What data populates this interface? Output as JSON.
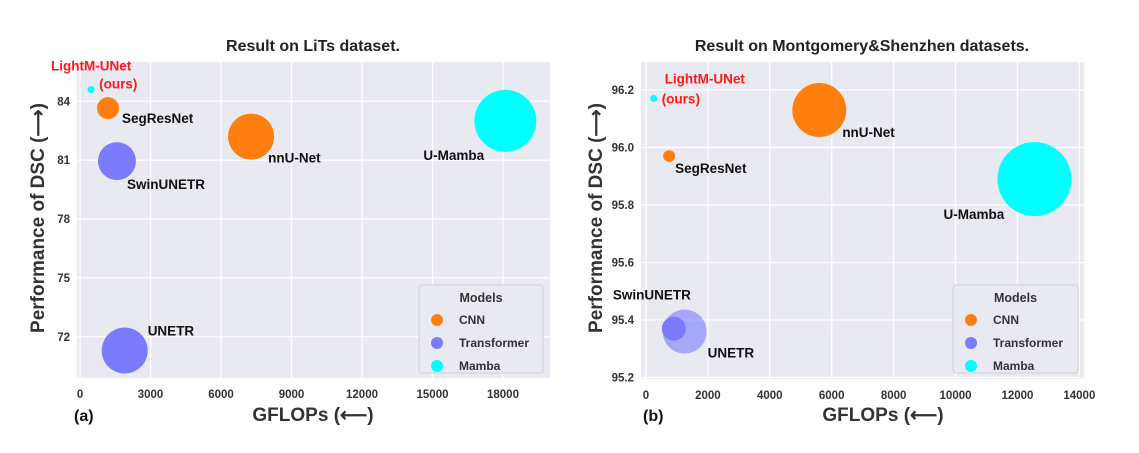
{
  "colors": {
    "CNN": "#ff7f0e",
    "Transformer": "#7b7bff",
    "Mamba": "#00ffff",
    "highlight": "#ff1a1a",
    "plot_bg": "#e9e9f1",
    "grid": "#ffffff"
  },
  "chart_data": [
    {
      "type": "scatter",
      "panel_label": "(a)",
      "title": "Result on LiTs dataset.",
      "xlabel": "GFLOPs (⟵)",
      "ylabel": "Performance of DSC (⟶)",
      "xlim": [
        -130,
        20000
      ],
      "ylim": [
        69.9,
        86.0
      ],
      "xticks": [
        0,
        3000,
        6000,
        9000,
        12000,
        15000,
        18000
      ],
      "xtick_labels": [
        "0",
        "3000",
        "6000",
        "9000",
        "12000",
        "15000",
        "18000"
      ],
      "yticks": [
        72,
        75,
        78,
        81,
        84
      ],
      "ytick_labels": [
        "72",
        "75",
        "78",
        "81",
        "84"
      ],
      "grid": true,
      "legend": {
        "title": "Models",
        "placement": "lower-right",
        "entries": [
          "CNN",
          "Transformer",
          "Mamba"
        ]
      },
      "points": [
        {
          "name": "LightM-UNet",
          "sub": "(ours)",
          "category": "Mamba",
          "x": 470,
          "y": 84.6,
          "size": 1,
          "highlight": true
        },
        {
          "name": "SegResNet",
          "category": "CNN",
          "x": 1190,
          "y": 83.65,
          "size": 11
        },
        {
          "name": "SwinUNETR",
          "category": "Transformer",
          "x": 1570,
          "y": 80.95,
          "size": 19
        },
        {
          "name": "nnU-Net",
          "category": "CNN",
          "x": 7280,
          "y": 82.2,
          "size": 23
        },
        {
          "name": "U-Mamba",
          "category": "Mamba",
          "x": 18100,
          "y": 83.0,
          "size": 31
        },
        {
          "name": "UNETR",
          "category": "Transformer",
          "x": 1900,
          "y": 71.3,
          "size": 23
        }
      ]
    },
    {
      "type": "scatter",
      "panel_label": "(b)",
      "title": "Result on Montgomery&Shenzhen datasets.",
      "xlabel": "GFLOPs (⟵)",
      "ylabel": "Performance of DSC (⟶)",
      "xlim": [
        -160,
        14150
      ],
      "ylim": [
        95.195,
        96.297
      ],
      "xticks": [
        0,
        2000,
        4000,
        6000,
        8000,
        10000,
        12000,
        14000
      ],
      "xtick_labels": [
        "0",
        "2000",
        "4000",
        "6000",
        "8000",
        "10000",
        "12000",
        "14000"
      ],
      "yticks": [
        95.2,
        95.4,
        95.6,
        95.8,
        96.0,
        96.2
      ],
      "ytick_labels": [
        "95.2",
        "95.4",
        "95.6",
        "95.8",
        "96.0",
        "96.2"
      ],
      "grid": true,
      "legend": {
        "title": "Models",
        "placement": "lower-right",
        "entries": [
          "CNN",
          "Transformer",
          "Mamba"
        ]
      },
      "points": [
        {
          "name": "LightM-UNet",
          "sub": "(ours)",
          "category": "Mamba",
          "x": 250,
          "y": 96.17,
          "size": 1,
          "highlight": true
        },
        {
          "name": "nnU-Net",
          "category": "CNN",
          "x": 5600,
          "y": 96.13,
          "size": 27
        },
        {
          "name": "SegResNet",
          "category": "CNN",
          "x": 750,
          "y": 95.97,
          "size": 6
        },
        {
          "name": "U-Mamba",
          "category": "Mamba",
          "x": 12550,
          "y": 95.89,
          "size": 37
        },
        {
          "name": "UNETR",
          "category": "Transformer",
          "x": 1250,
          "y": 95.36,
          "size": 22
        },
        {
          "name": "SwinUNETR",
          "category": "Transformer",
          "x": 900,
          "y": 95.37,
          "size": 12
        }
      ]
    }
  ]
}
